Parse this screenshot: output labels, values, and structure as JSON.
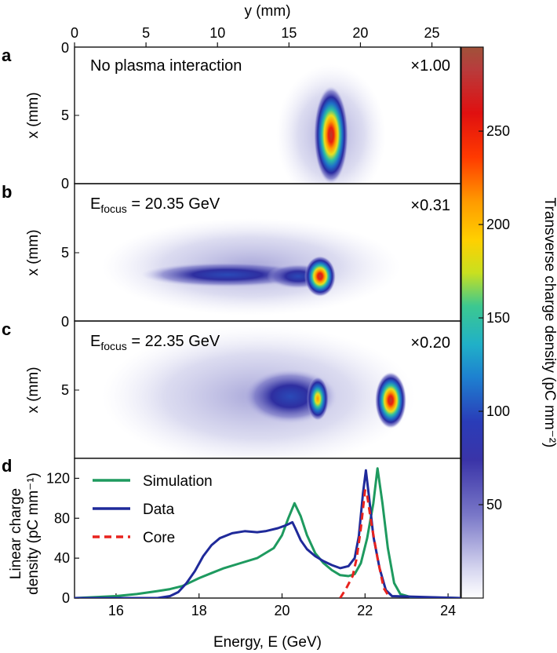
{
  "figure": {
    "top_axis_label": "y (mm)",
    "top_axis_ticks": [
      "0",
      "5",
      "10",
      "15",
      "20",
      "25"
    ],
    "colorbar_label": "Transverse charge density (pC mm⁻²)",
    "colorbar_ticks": [
      "50",
      "100",
      "150",
      "200",
      "250"
    ],
    "panels": [
      {
        "letter": "a",
        "annotation": "No plasma interaction",
        "scale": "×1.00",
        "ylabel": "x (mm)",
        "yticks": [
          "0",
          "5",
          "0"
        ]
      },
      {
        "letter": "b",
        "annotation_prefix": "E",
        "annotation_sub": "focus",
        "annotation_suffix": " = 20.35 GeV",
        "scale": "×0.31",
        "ylabel": "x (mm)",
        "yticks": [
          "5",
          "0"
        ]
      },
      {
        "letter": "c",
        "annotation_prefix": "E",
        "annotation_sub": "focus",
        "annotation_suffix": " = 22.35 GeV",
        "scale": "×0.20",
        "ylabel": "x (mm)",
        "yticks": [
          "5"
        ]
      },
      {
        "letter": "d",
        "ylabel_line1": "Linear charge",
        "ylabel_line2": "density (pC mm⁻¹)"
      }
    ]
  },
  "chart_data": {
    "type": "line",
    "xlabel": "Energy, E (GeV)",
    "xlim": [
      15,
      24.3
    ],
    "ylim": [
      0,
      140
    ],
    "xticks": [
      16,
      18,
      20,
      22,
      24
    ],
    "yticks": [
      0,
      40,
      80,
      120
    ],
    "legend": {
      "placement": "top-left"
    },
    "series": [
      {
        "name": "Simulation",
        "color": "#1e9a5f",
        "style": "solid",
        "points": [
          [
            15,
            0
          ],
          [
            16,
            2
          ],
          [
            16.5,
            4
          ],
          [
            17,
            7
          ],
          [
            17.3,
            9
          ],
          [
            17.6,
            12
          ],
          [
            17.8,
            16
          ],
          [
            18,
            20
          ],
          [
            18.3,
            25
          ],
          [
            18.6,
            30
          ],
          [
            19,
            35
          ],
          [
            19.4,
            40
          ],
          [
            19.8,
            50
          ],
          [
            20,
            63
          ],
          [
            20.15,
            80
          ],
          [
            20.3,
            95
          ],
          [
            20.45,
            82
          ],
          [
            20.6,
            63
          ],
          [
            20.8,
            45
          ],
          [
            21,
            35
          ],
          [
            21.2,
            28
          ],
          [
            21.4,
            23
          ],
          [
            21.6,
            22
          ],
          [
            21.75,
            24
          ],
          [
            21.9,
            35
          ],
          [
            22.05,
            60
          ],
          [
            22.2,
            95
          ],
          [
            22.3,
            130
          ],
          [
            22.42,
            95
          ],
          [
            22.55,
            50
          ],
          [
            22.7,
            15
          ],
          [
            22.85,
            4
          ],
          [
            23.1,
            1
          ],
          [
            24.3,
            0
          ]
        ]
      },
      {
        "name": "Data",
        "color": "#1f2a9a",
        "style": "solid",
        "points": [
          [
            15,
            0
          ],
          [
            17,
            0
          ],
          [
            17.3,
            2
          ],
          [
            17.5,
            6
          ],
          [
            17.7,
            15
          ],
          [
            17.9,
            27
          ],
          [
            18.1,
            42
          ],
          [
            18.3,
            53
          ],
          [
            18.5,
            60
          ],
          [
            18.8,
            65
          ],
          [
            19.1,
            67
          ],
          [
            19.4,
            66
          ],
          [
            19.6,
            67
          ],
          [
            19.9,
            70
          ],
          [
            20.1,
            73
          ],
          [
            20.25,
            76
          ],
          [
            20.32,
            70
          ],
          [
            20.45,
            58
          ],
          [
            20.6,
            49
          ],
          [
            20.8,
            42
          ],
          [
            21,
            37
          ],
          [
            21.2,
            33
          ],
          [
            21.4,
            30
          ],
          [
            21.6,
            32
          ],
          [
            21.75,
            40
          ],
          [
            21.85,
            62
          ],
          [
            21.95,
            105
          ],
          [
            22.02,
            128
          ],
          [
            22.1,
            100
          ],
          [
            22.2,
            62
          ],
          [
            22.35,
            30
          ],
          [
            22.5,
            8
          ],
          [
            22.65,
            2
          ],
          [
            24.3,
            0
          ]
        ]
      },
      {
        "name": "Core",
        "color": "#e8231e",
        "style": "dashed",
        "points": [
          [
            21.4,
            0
          ],
          [
            21.55,
            10
          ],
          [
            21.7,
            22
          ],
          [
            21.8,
            40
          ],
          [
            21.9,
            70
          ],
          [
            22.0,
            108
          ],
          [
            22.05,
            103
          ],
          [
            22.15,
            75
          ],
          [
            22.3,
            40
          ],
          [
            22.45,
            10
          ],
          [
            22.6,
            0
          ]
        ]
      }
    ]
  }
}
